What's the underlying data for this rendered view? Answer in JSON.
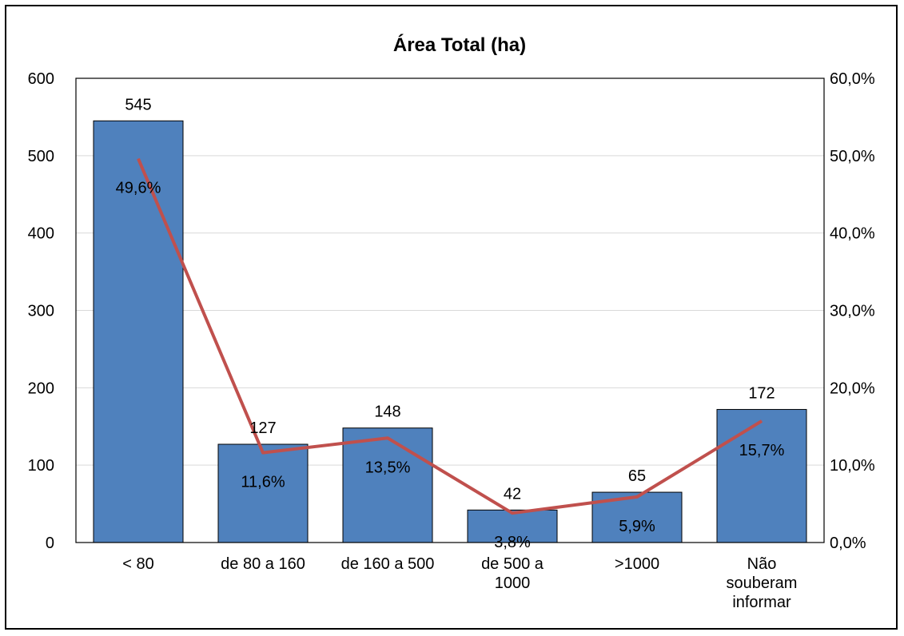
{
  "chart_data": {
    "type": "bar",
    "title": "Área Total (ha)",
    "categories": [
      [
        "< 80"
      ],
      [
        "de 80 a 160"
      ],
      [
        "de 160 a 500"
      ],
      [
        "de 500 a",
        "1000"
      ],
      [
        ">1000"
      ],
      [
        "Não",
        "souberam",
        "informar"
      ]
    ],
    "series": [
      {
        "type": "bar",
        "values": [
          545,
          127,
          148,
          42,
          65,
          172
        ],
        "labels": [
          "545",
          "127",
          "148",
          "42",
          "65",
          "172"
        ],
        "color": "#4f81bd",
        "axis": "left"
      },
      {
        "type": "line",
        "values": [
          49.6,
          11.6,
          13.5,
          3.8,
          5.9,
          15.7
        ],
        "labels": [
          "49,6%",
          "11,6%",
          "13,5%",
          "3,8%",
          "5,9%",
          "15,7%"
        ],
        "color": "#c0504d",
        "axis": "right"
      }
    ],
    "y_left": {
      "ylim": [
        0,
        600
      ],
      "ticks": [
        0,
        100,
        200,
        300,
        400,
        500,
        600
      ],
      "tick_labels": [
        "0",
        "100",
        "200",
        "300",
        "400",
        "500",
        "600"
      ]
    },
    "y_right": {
      "ylim": [
        0,
        60
      ],
      "ticks": [
        0,
        10,
        20,
        30,
        40,
        50,
        60
      ],
      "tick_labels": [
        "0,0%",
        "10,0%",
        "20,0%",
        "30,0%",
        "40,0%",
        "50,0%",
        "60,0%"
      ]
    },
    "grid": true,
    "legend": "none"
  }
}
